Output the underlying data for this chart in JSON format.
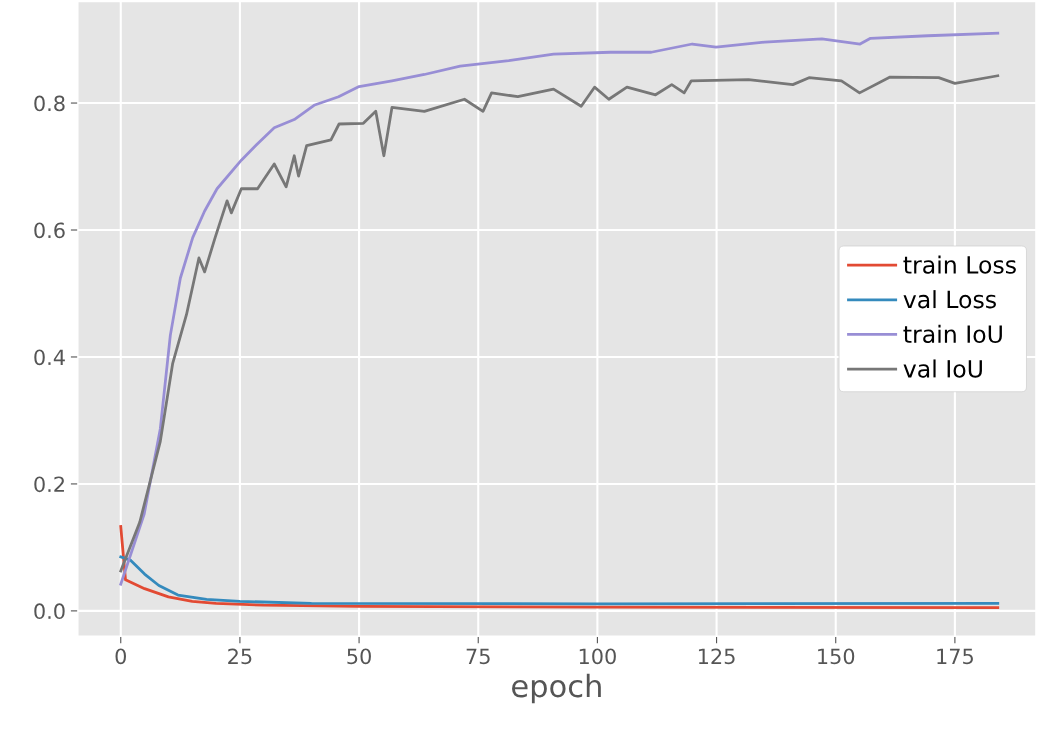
{
  "chart_data": {
    "type": "line",
    "xlabel": "epoch",
    "xlim": [
      -9,
      192
    ],
    "ylim": [
      -0.04,
      0.96
    ],
    "xticks": [
      0,
      25,
      50,
      75,
      100,
      125,
      150,
      175
    ],
    "yticks": [
      {
        "value": 0,
        "label": "0.0"
      },
      {
        "value": 0.2,
        "label": "0.2"
      },
      {
        "value": 0.4,
        "label": "0.4"
      },
      {
        "value": 0.6,
        "label": "0.6"
      },
      {
        "value": 0.8,
        "label": "0.8"
      }
    ],
    "grid": true,
    "legend": "right",
    "line_style": "solid",
    "series": [
      {
        "name": "train Loss",
        "color": "#e24a33",
        "x": [
          0,
          1,
          5,
          10,
          15,
          20,
          30,
          50,
          100,
          184
        ],
        "values": [
          0.133,
          0.049,
          0.035,
          0.022,
          0.015,
          0.012,
          0.009,
          0.007,
          0.006,
          0.005
        ]
      },
      {
        "name": "val Loss",
        "color": "#348abd",
        "x": [
          0,
          2,
          5,
          8,
          12,
          18,
          25,
          40,
          100,
          184
        ],
        "values": [
          0.085,
          0.08,
          0.058,
          0.04,
          0.025,
          0.018,
          0.015,
          0.012,
          0.011,
          0.012
        ]
      },
      {
        "name": "train IoU",
        "color": "#988ed5",
        "x": [
          0,
          4.9,
          8.3,
          10.4,
          12.5,
          15.1,
          17.6,
          20.2,
          25.3,
          28.7,
          32.2,
          36.4,
          40.7,
          45.7,
          50,
          56.9,
          63.7,
          71.2,
          81.4,
          90.8,
          102.7,
          111.3,
          119.9,
          124.9,
          135.1,
          147.1,
          155.1,
          157.3,
          169.3,
          184
        ],
        "values": [
          0.042,
          0.152,
          0.287,
          0.434,
          0.524,
          0.588,
          0.63,
          0.665,
          0.71,
          0.736,
          0.761,
          0.774,
          0.797,
          0.81,
          0.826,
          0.835,
          0.845,
          0.858,
          0.867,
          0.877,
          0.88,
          0.88,
          0.893,
          0.888,
          0.896,
          0.901,
          0.893,
          0.902,
          0.906,
          0.91
        ]
      },
      {
        "name": "val IoU",
        "color": "#777777",
        "x": [
          0,
          4,
          8.3,
          10.9,
          13.8,
          16.4,
          17.6,
          19.8,
          22.3,
          23.2,
          25.3,
          28.7,
          32.2,
          34.7,
          36.4,
          37.3,
          39,
          44.1,
          45.8,
          50.9,
          53.5,
          55.2,
          56.9,
          63.7,
          72.1,
          76,
          77.8,
          83.3,
          90.8,
          96.6,
          99.4,
          102.4,
          106.2,
          112.2,
          115.6,
          118.2,
          119.7,
          131.7,
          141,
          144.4,
          151.2,
          155,
          161.4,
          171.6,
          175,
          184
        ],
        "values": [
          0.063,
          0.14,
          0.267,
          0.39,
          0.467,
          0.556,
          0.534,
          0.588,
          0.646,
          0.627,
          0.665,
          0.665,
          0.704,
          0.668,
          0.717,
          0.685,
          0.733,
          0.742,
          0.767,
          0.768,
          0.787,
          0.717,
          0.793,
          0.787,
          0.806,
          0.787,
          0.816,
          0.81,
          0.822,
          0.795,
          0.825,
          0.806,
          0.825,
          0.813,
          0.829,
          0.816,
          0.835,
          0.837,
          0.829,
          0.84,
          0.835,
          0.816,
          0.841,
          0.84,
          0.831,
          0.843
        ]
      }
    ]
  }
}
